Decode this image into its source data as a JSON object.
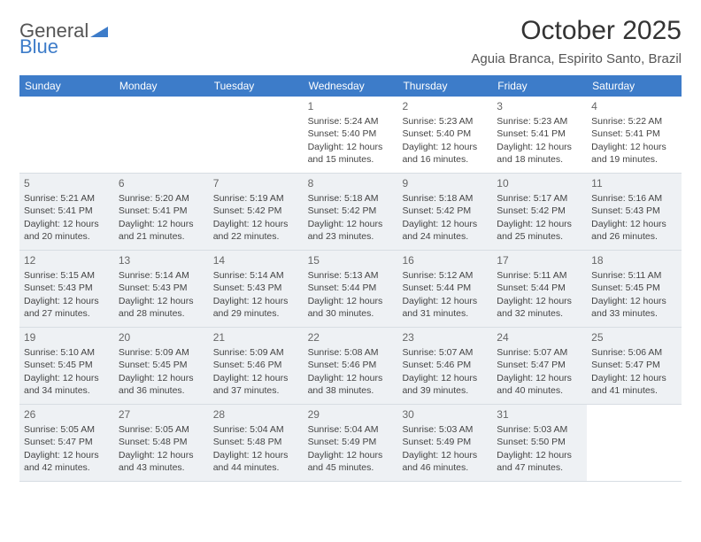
{
  "logo": {
    "text1": "General",
    "text2": "Blue"
  },
  "title": "October 2025",
  "location": "Aguia Branca, Espirito Santo, Brazil",
  "colors": {
    "header_bg": "#3d7cc9",
    "header_text": "#ffffff",
    "shaded_bg": "#eef1f4",
    "border": "#d7dde3",
    "text": "#444444",
    "logo_gray": "#555555",
    "logo_blue": "#3d7cc9"
  },
  "dow": [
    "Sunday",
    "Monday",
    "Tuesday",
    "Wednesday",
    "Thursday",
    "Friday",
    "Saturday"
  ],
  "weeks": [
    [
      {
        "num": "",
        "shaded": false
      },
      {
        "num": "",
        "shaded": false
      },
      {
        "num": "",
        "shaded": false
      },
      {
        "num": "1",
        "shaded": false,
        "sunrise": "Sunrise: 5:24 AM",
        "sunset": "Sunset: 5:40 PM",
        "daylight": "Daylight: 12 hours and 15 minutes."
      },
      {
        "num": "2",
        "shaded": false,
        "sunrise": "Sunrise: 5:23 AM",
        "sunset": "Sunset: 5:40 PM",
        "daylight": "Daylight: 12 hours and 16 minutes."
      },
      {
        "num": "3",
        "shaded": false,
        "sunrise": "Sunrise: 5:23 AM",
        "sunset": "Sunset: 5:41 PM",
        "daylight": "Daylight: 12 hours and 18 minutes."
      },
      {
        "num": "4",
        "shaded": false,
        "sunrise": "Sunrise: 5:22 AM",
        "sunset": "Sunset: 5:41 PM",
        "daylight": "Daylight: 12 hours and 19 minutes."
      }
    ],
    [
      {
        "num": "5",
        "shaded": true,
        "sunrise": "Sunrise: 5:21 AM",
        "sunset": "Sunset: 5:41 PM",
        "daylight": "Daylight: 12 hours and 20 minutes."
      },
      {
        "num": "6",
        "shaded": true,
        "sunrise": "Sunrise: 5:20 AM",
        "sunset": "Sunset: 5:41 PM",
        "daylight": "Daylight: 12 hours and 21 minutes."
      },
      {
        "num": "7",
        "shaded": true,
        "sunrise": "Sunrise: 5:19 AM",
        "sunset": "Sunset: 5:42 PM",
        "daylight": "Daylight: 12 hours and 22 minutes."
      },
      {
        "num": "8",
        "shaded": true,
        "sunrise": "Sunrise: 5:18 AM",
        "sunset": "Sunset: 5:42 PM",
        "daylight": "Daylight: 12 hours and 23 minutes."
      },
      {
        "num": "9",
        "shaded": true,
        "sunrise": "Sunrise: 5:18 AM",
        "sunset": "Sunset: 5:42 PM",
        "daylight": "Daylight: 12 hours and 24 minutes."
      },
      {
        "num": "10",
        "shaded": true,
        "sunrise": "Sunrise: 5:17 AM",
        "sunset": "Sunset: 5:42 PM",
        "daylight": "Daylight: 12 hours and 25 minutes."
      },
      {
        "num": "11",
        "shaded": true,
        "sunrise": "Sunrise: 5:16 AM",
        "sunset": "Sunset: 5:43 PM",
        "daylight": "Daylight: 12 hours and 26 minutes."
      }
    ],
    [
      {
        "num": "12",
        "shaded": true,
        "sunrise": "Sunrise: 5:15 AM",
        "sunset": "Sunset: 5:43 PM",
        "daylight": "Daylight: 12 hours and 27 minutes."
      },
      {
        "num": "13",
        "shaded": true,
        "sunrise": "Sunrise: 5:14 AM",
        "sunset": "Sunset: 5:43 PM",
        "daylight": "Daylight: 12 hours and 28 minutes."
      },
      {
        "num": "14",
        "shaded": true,
        "sunrise": "Sunrise: 5:14 AM",
        "sunset": "Sunset: 5:43 PM",
        "daylight": "Daylight: 12 hours and 29 minutes."
      },
      {
        "num": "15",
        "shaded": true,
        "sunrise": "Sunrise: 5:13 AM",
        "sunset": "Sunset: 5:44 PM",
        "daylight": "Daylight: 12 hours and 30 minutes."
      },
      {
        "num": "16",
        "shaded": true,
        "sunrise": "Sunrise: 5:12 AM",
        "sunset": "Sunset: 5:44 PM",
        "daylight": "Daylight: 12 hours and 31 minutes."
      },
      {
        "num": "17",
        "shaded": true,
        "sunrise": "Sunrise: 5:11 AM",
        "sunset": "Sunset: 5:44 PM",
        "daylight": "Daylight: 12 hours and 32 minutes."
      },
      {
        "num": "18",
        "shaded": true,
        "sunrise": "Sunrise: 5:11 AM",
        "sunset": "Sunset: 5:45 PM",
        "daylight": "Daylight: 12 hours and 33 minutes."
      }
    ],
    [
      {
        "num": "19",
        "shaded": true,
        "sunrise": "Sunrise: 5:10 AM",
        "sunset": "Sunset: 5:45 PM",
        "daylight": "Daylight: 12 hours and 34 minutes."
      },
      {
        "num": "20",
        "shaded": true,
        "sunrise": "Sunrise: 5:09 AM",
        "sunset": "Sunset: 5:45 PM",
        "daylight": "Daylight: 12 hours and 36 minutes."
      },
      {
        "num": "21",
        "shaded": true,
        "sunrise": "Sunrise: 5:09 AM",
        "sunset": "Sunset: 5:46 PM",
        "daylight": "Daylight: 12 hours and 37 minutes."
      },
      {
        "num": "22",
        "shaded": true,
        "sunrise": "Sunrise: 5:08 AM",
        "sunset": "Sunset: 5:46 PM",
        "daylight": "Daylight: 12 hours and 38 minutes."
      },
      {
        "num": "23",
        "shaded": true,
        "sunrise": "Sunrise: 5:07 AM",
        "sunset": "Sunset: 5:46 PM",
        "daylight": "Daylight: 12 hours and 39 minutes."
      },
      {
        "num": "24",
        "shaded": true,
        "sunrise": "Sunrise: 5:07 AM",
        "sunset": "Sunset: 5:47 PM",
        "daylight": "Daylight: 12 hours and 40 minutes."
      },
      {
        "num": "25",
        "shaded": true,
        "sunrise": "Sunrise: 5:06 AM",
        "sunset": "Sunset: 5:47 PM",
        "daylight": "Daylight: 12 hours and 41 minutes."
      }
    ],
    [
      {
        "num": "26",
        "shaded": true,
        "sunrise": "Sunrise: 5:05 AM",
        "sunset": "Sunset: 5:47 PM",
        "daylight": "Daylight: 12 hours and 42 minutes."
      },
      {
        "num": "27",
        "shaded": true,
        "sunrise": "Sunrise: 5:05 AM",
        "sunset": "Sunset: 5:48 PM",
        "daylight": "Daylight: 12 hours and 43 minutes."
      },
      {
        "num": "28",
        "shaded": true,
        "sunrise": "Sunrise: 5:04 AM",
        "sunset": "Sunset: 5:48 PM",
        "daylight": "Daylight: 12 hours and 44 minutes."
      },
      {
        "num": "29",
        "shaded": true,
        "sunrise": "Sunrise: 5:04 AM",
        "sunset": "Sunset: 5:49 PM",
        "daylight": "Daylight: 12 hours and 45 minutes."
      },
      {
        "num": "30",
        "shaded": true,
        "sunrise": "Sunrise: 5:03 AM",
        "sunset": "Sunset: 5:49 PM",
        "daylight": "Daylight: 12 hours and 46 minutes."
      },
      {
        "num": "31",
        "shaded": true,
        "sunrise": "Sunrise: 5:03 AM",
        "sunset": "Sunset: 5:50 PM",
        "daylight": "Daylight: 12 hours and 47 minutes."
      },
      {
        "num": "",
        "shaded": false
      }
    ]
  ]
}
